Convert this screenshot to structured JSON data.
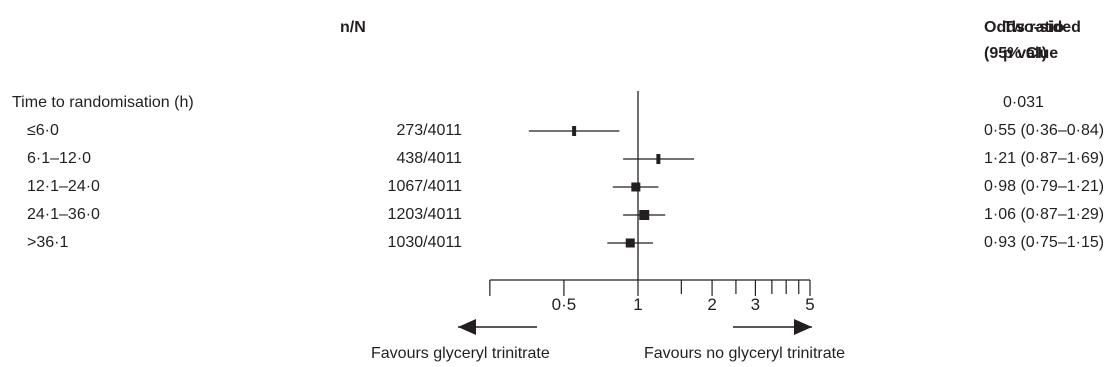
{
  "headers": {
    "n_over_n": "n/N",
    "odds_ratio_line1": "Odds ratio",
    "odds_ratio_line2": "(95% CI)",
    "pvalue_line1": "Two-sided",
    "pvalue_line2": "p value"
  },
  "group": {
    "label": "Time to randomisation (h)",
    "p_value": "0·031"
  },
  "chart_data": {
    "type": "forest",
    "x_scale": "log",
    "xlim": [
      0.25,
      5
    ],
    "reference_line": 1,
    "ticks": [
      {
        "value": 0.25,
        "label": ""
      },
      {
        "value": 0.5,
        "label": "0·5"
      },
      {
        "value": 1,
        "label": "1"
      },
      {
        "value": 1.5,
        "label": ""
      },
      {
        "value": 2,
        "label": "2"
      },
      {
        "value": 2.5,
        "label": ""
      },
      {
        "value": 3,
        "label": "3"
      },
      {
        "value": 3.5,
        "label": ""
      },
      {
        "value": 4,
        "label": ""
      },
      {
        "value": 4.5,
        "label": ""
      },
      {
        "value": 5,
        "label": "5"
      }
    ],
    "rows": [
      {
        "label": "≤6·0",
        "n": "273/4011",
        "or": 0.55,
        "lo": 0.36,
        "hi": 0.84,
        "or_text": "0·55 (0·36–0·84)"
      },
      {
        "label": "6·1–12·0",
        "n": "438/4011",
        "or": 1.21,
        "lo": 0.87,
        "hi": 1.69,
        "or_text": "1·21 (0·87–1·69)"
      },
      {
        "label": "12·1–24·0",
        "n": "1067/4011",
        "or": 0.98,
        "lo": 0.79,
        "hi": 1.21,
        "or_text": "0·98 (0·79–1·21)"
      },
      {
        "label": "24·1–36·0",
        "n": "1203/4011",
        "or": 1.06,
        "lo": 0.87,
        "hi": 1.29,
        "or_text": "1·06 (0·87–1·29)"
      },
      {
        "label": ">36·1",
        "n": "1030/4011",
        "or": 0.93,
        "lo": 0.75,
        "hi": 1.15,
        "or_text": "0·93 (0·75–1·15)"
      }
    ],
    "favours_left": "Favours glyceryl trinitrate",
    "favours_right": "Favours no glyceryl trinitrate"
  }
}
